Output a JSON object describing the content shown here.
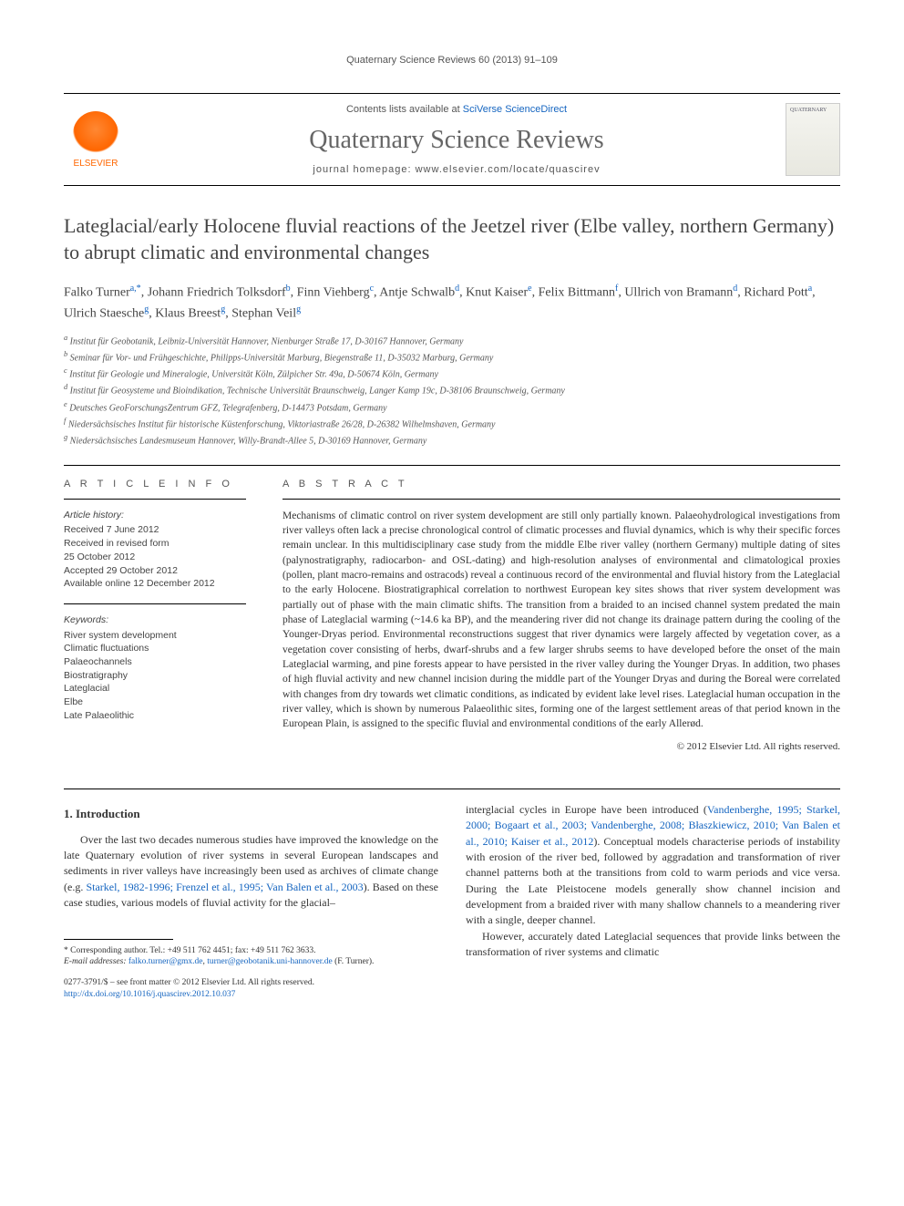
{
  "running_head": "Quaternary Science Reviews 60 (2013) 91–109",
  "masthead": {
    "contents_prefix": "Contents lists available at ",
    "contents_link": "SciVerse ScienceDirect",
    "journal": "Quaternary Science Reviews",
    "homepage_prefix": "journal homepage: ",
    "homepage": "www.elsevier.com/locate/quascirev",
    "publisher": "ELSEVIER",
    "cover_label": "QUATERNARY"
  },
  "title": "Lateglacial/early Holocene fluvial reactions of the Jeetzel river (Elbe valley, northern Germany) to abrupt climatic and environmental changes",
  "authors_html": "Falko Turner<sup>a,*</sup>, Johann Friedrich Tolksdorf<sup>b</sup>, Finn Viehberg<sup>c</sup>, Antje Schwalb<sup>d</sup>, Knut Kaiser<sup>e</sup>, Felix Bittmann<sup>f</sup>, Ullrich von Bramann<sup>d</sup>, Richard Pott<sup>a</sup>, Ulrich Staesche<sup>g</sup>, Klaus Breest<sup>g</sup>, Stephan Veil<sup>g</sup>",
  "affiliations": [
    "a Institut für Geobotanik, Leibniz-Universität Hannover, Nienburger Straße 17, D-30167 Hannover, Germany",
    "b Seminar für Vor- und Frühgeschichte, Philipps-Universität Marburg, Biegenstraße 11, D-35032 Marburg, Germany",
    "c Institut für Geologie und Mineralogie, Universität Köln, Zülpicher Str. 49a, D-50674 Köln, Germany",
    "d Institut für Geosysteme und Bioindikation, Technische Universität Braunschweig, Langer Kamp 19c, D-38106 Braunschweig, Germany",
    "e Deutsches GeoForschungsZentrum GFZ, Telegrafenberg, D-14473 Potsdam, Germany",
    "f Niedersächsisches Institut für historische Küstenforschung, Viktoriastraße 26/28, D-26382 Wilhelmshaven, Germany",
    "g Niedersächsisches Landesmuseum Hannover, Willy-Brandt-Allee 5, D-30169 Hannover, Germany"
  ],
  "article_info": {
    "head": "A R T I C L E   I N F O",
    "history_label": "Article history:",
    "history": [
      "Received 7 June 2012",
      "Received in revised form",
      "25 October 2012",
      "Accepted 29 October 2012",
      "Available online 12 December 2012"
    ],
    "keywords_label": "Keywords:",
    "keywords": [
      "River system development",
      "Climatic fluctuations",
      "Palaeochannels",
      "Biostratigraphy",
      "Lateglacial",
      "Elbe",
      "Late Palaeolithic"
    ]
  },
  "abstract": {
    "head": "A B S T R A C T",
    "body": "Mechanisms of climatic control on river system development are still only partially known. Palaeohydrological investigations from river valleys often lack a precise chronological control of climatic processes and fluvial dynamics, which is why their specific forces remain unclear. In this multidisciplinary case study from the middle Elbe river valley (northern Germany) multiple dating of sites (palynostratigraphy, radiocarbon- and OSL-dating) and high-resolution analyses of environmental and climatological proxies (pollen, plant macro-remains and ostracods) reveal a continuous record of the environmental and fluvial history from the Lateglacial to the early Holocene. Biostratigraphical correlation to northwest European key sites shows that river system development was partially out of phase with the main climatic shifts. The transition from a braided to an incised channel system predated the main phase of Lateglacial warming (~14.6 ka BP), and the meandering river did not change its drainage pattern during the cooling of the Younger-Dryas period. Environmental reconstructions suggest that river dynamics were largely affected by vegetation cover, as a vegetation cover consisting of herbs, dwarf-shrubs and a few larger shrubs seems to have developed before the onset of the main Lateglacial warming, and pine forests appear to have persisted in the river valley during the Younger Dryas. In addition, two phases of high fluvial activity and new channel incision during the middle part of the Younger Dryas and during the Boreal were correlated with changes from dry towards wet climatic conditions, as indicated by evident lake level rises. Lateglacial human occupation in the river valley, which is shown by numerous Palaeolithic sites, forming one of the largest settlement areas of that period known in the European Plain, is assigned to the specific fluvial and environmental conditions of the early Allerød.",
    "copyright": "© 2012 Elsevier Ltd. All rights reserved."
  },
  "body": {
    "section_head": "1. Introduction",
    "col1_p1_pre": "Over the last two decades numerous studies have improved the knowledge on the late Quaternary evolution of river systems in several European landscapes and sediments in river valleys have increasingly been used as archives of climate change (e.g. ",
    "col1_p1_links": "Starkel, 1982-1996; Frenzel et al., 1995; Van Balen et al., 2003",
    "col1_p1_post": "). Based on these case studies, various models of fluvial activity for the glacial–",
    "col2_p1_pre": "interglacial cycles in Europe have been introduced (",
    "col2_p1_links": "Vandenberghe, 1995; Starkel, 2000; Bogaart et al., 2003; Vandenberghe, 2008; Błaszkiewicz, 2010; Van Balen et al., 2010; Kaiser et al., 2012",
    "col2_p1_post": "). Conceptual models characterise periods of instability with erosion of the river bed, followed by aggradation and transformation of river channel patterns both at the transitions from cold to warm periods and vice versa. During the Late Pleistocene models generally show channel incision and development from a braided river with many shallow channels to a meandering river with a single, deeper channel.",
    "col2_p2": "However, accurately dated Lateglacial sequences that provide links between the transformation of river systems and climatic"
  },
  "footnote": {
    "corr": "* Corresponding author. Tel.: +49 511 762 4451; fax: +49 511 762 3633.",
    "email_label": "E-mail addresses:",
    "email1": "falko.turner@gmx.de",
    "email_sep": ", ",
    "email2": "turner@geobotanik.uni-hannover.de",
    "email_tail": " (F. Turner)."
  },
  "doi": {
    "line1": "0277-3791/$ – see front matter © 2012 Elsevier Ltd. All rights reserved.",
    "link": "http://dx.doi.org/10.1016/j.quascirev.2012.10.037"
  },
  "colors": {
    "link": "#1565c0",
    "text": "#333333",
    "muted": "#555555",
    "publisher": "#ff6600"
  }
}
